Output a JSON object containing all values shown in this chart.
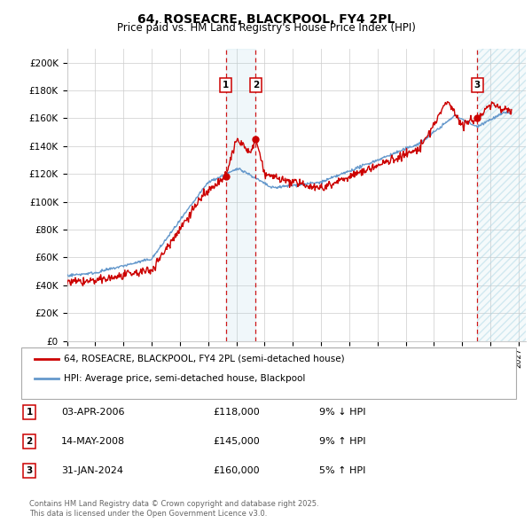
{
  "title": "64, ROSEACRE, BLACKPOOL, FY4 2PL",
  "subtitle": "Price paid vs. HM Land Registry's House Price Index (HPI)",
  "ylim": [
    0,
    210000
  ],
  "yticks": [
    0,
    20000,
    40000,
    60000,
    80000,
    100000,
    120000,
    140000,
    160000,
    180000,
    200000
  ],
  "ytick_labels": [
    "£0",
    "£20K",
    "£40K",
    "£60K",
    "£80K",
    "£100K",
    "£120K",
    "£140K",
    "£160K",
    "£180K",
    "£200K"
  ],
  "xlim_start": 1995.0,
  "xlim_end": 2027.5,
  "property_color": "#cc0000",
  "hpi_color": "#6699cc",
  "legend_property": "64, ROSEACRE, BLACKPOOL, FY4 2PL (semi-detached house)",
  "legend_hpi": "HPI: Average price, semi-detached house, Blackpool",
  "transactions": [
    {
      "label": "1",
      "date": 2006.25,
      "price": 118000,
      "pct": "9%",
      "dir": "↓",
      "year_str": "03-APR-2006"
    },
    {
      "label": "2",
      "date": 2008.37,
      "price": 145000,
      "pct": "9%",
      "dir": "↑",
      "year_str": "14-MAY-2008"
    },
    {
      "label": "3",
      "date": 2024.08,
      "price": 160000,
      "pct": "5%",
      "dir": "↑",
      "year_str": "31-JAN-2024"
    }
  ],
  "footer_line1": "Contains HM Land Registry data © Crown copyright and database right 2025.",
  "footer_line2": "This data is licensed under the Open Government Licence v3.0."
}
